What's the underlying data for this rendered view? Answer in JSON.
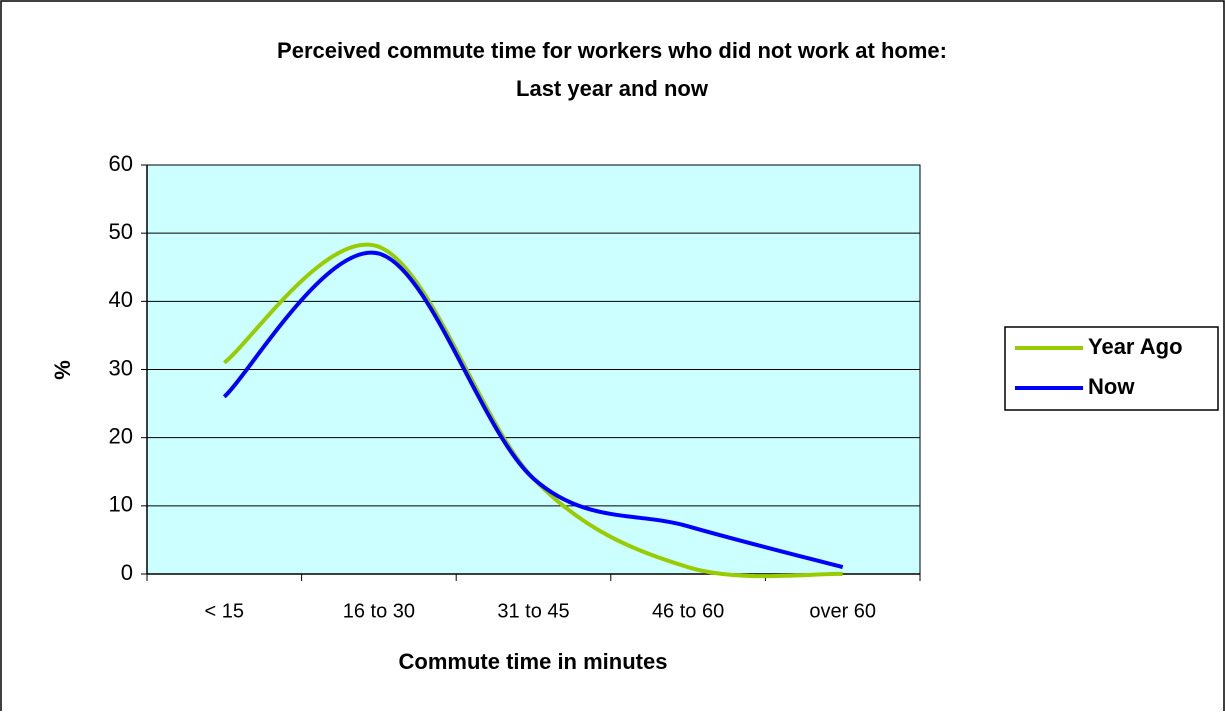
{
  "chart_data": {
    "type": "line",
    "title": "Perceived commute time for workers who did not work at home:",
    "subtitle": "Last year and now",
    "x_label": "Commute time in minutes",
    "y_label": "%",
    "categories": [
      "< 15",
      "16 to 30",
      "31 to 45",
      "46 to 60",
      "over 60"
    ],
    "series": [
      {
        "name": "Year Ago",
        "color": "#99cc00",
        "values": [
          31,
          48,
          14,
          1,
          0
        ]
      },
      {
        "name": "Now",
        "color": "#0000ff",
        "values": [
          26,
          47,
          14,
          7,
          1
        ]
      }
    ],
    "ylim": [
      0,
      60
    ],
    "yticks": [
      0,
      10,
      20,
      30,
      40,
      50,
      60
    ],
    "grid": true,
    "smooth": true,
    "legend": "right",
    "plot_background": "#ccffff"
  }
}
